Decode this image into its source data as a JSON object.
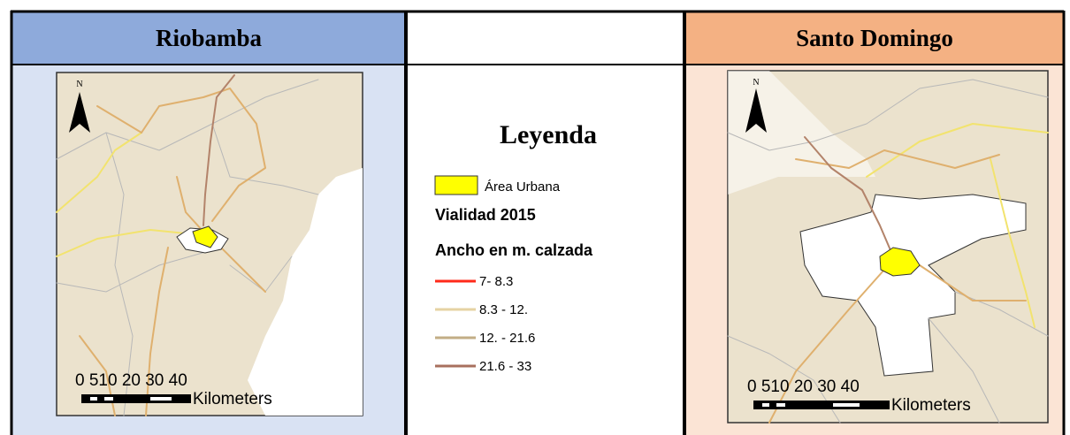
{
  "panels": [
    {
      "title": "Riobamba",
      "map": {
        "north": "N",
        "scale_labels": "0 510 20 30 40",
        "scale_unit": "Kilometers"
      }
    },
    {
      "title": "Santo Domingo",
      "map": {
        "north": "N",
        "scale_labels": "0 510 20 30 40",
        "scale_unit": "Kilometers"
      }
    }
  ],
  "legend": {
    "title": "Leyenda",
    "urban": "Área Urbana",
    "heading": "Vialidad 2015",
    "subheading": "Ancho en m. calzada",
    "classes": [
      {
        "label": "7- 8.3",
        "color": "#ff2a1a"
      },
      {
        "label": "8.3 - 12.",
        "color": "#e6d3a3"
      },
      {
        "label": "12. - 21.6",
        "color": "#c2ad86"
      },
      {
        "label": "21.6 - 33",
        "color": "#a8705e"
      }
    ]
  }
}
